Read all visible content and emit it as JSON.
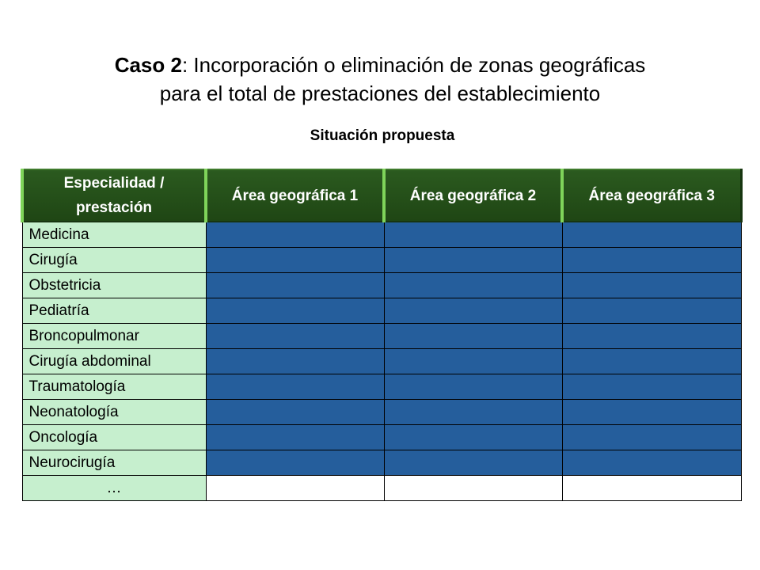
{
  "title": {
    "bold_part": "Caso 2",
    "rest_line1": ": Incorporación o eliminación de zonas geográficas",
    "line2": "para el total de prestaciones del establecimiento"
  },
  "subtitle": "Situación propuesta",
  "table": {
    "headers": [
      "Especialidad / prestación",
      "Área geográfica 1",
      "Área geográfica 2",
      "Área geográfica 3"
    ],
    "rows": [
      "Medicina",
      "Cirugía",
      "Obstetricia",
      "Pediatría",
      "Broncopulmonar",
      "Cirugía abdominal",
      "Traumatología",
      "Neonatología",
      "Oncología",
      "Neurocirugía",
      "…"
    ]
  },
  "colors": {
    "header_green": "#1f4614",
    "label_green": "#c6efce",
    "cell_blue": "#255e9c"
  }
}
